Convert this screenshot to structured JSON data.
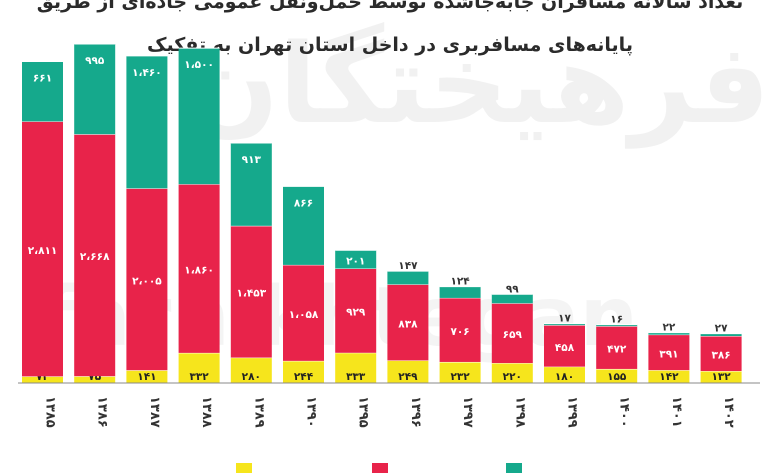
{
  "title_line1": "تعداد سالانه مسافران جابه‌جاشده توسط حمل‌ونقل عمومی جاده‌ای از طریق",
  "title_line2": "پایانه‌های مسافربری در داخل استان تهران به تفکیک",
  "colors": {
    "red": "#e8234a",
    "green": "#15a98c",
    "yellow": "#f6e51c"
  },
  "chart_data": {
    "type": "bar",
    "stacked": true,
    "categories": [
      "۱۳۸۵",
      "۱۳۸۶",
      "۱۳۸۷",
      "۱۳۸۸",
      "۱۳۸۹",
      "۱۳۹۰",
      "۱۳۹۵",
      "۱۳۹۶",
      "۱۳۹۷",
      "۱۳۹۸",
      "۱۳۹۹",
      "۱۴۰۰",
      "۱۴۰۱",
      "۱۴۰۲"
    ],
    "series": [
      {
        "color": "#f6e51c",
        "values": [
          73,
          75,
          141,
          332,
          280,
          244,
          333,
          249,
          232,
          220,
          180,
          155,
          142,
          132
        ],
        "labels": [
          "۷۳",
          "۷۵",
          "۱۴۱",
          "۳۳۲",
          "۲۸۰",
          "۲۴۴",
          "۳۳۳",
          "۲۴۹",
          "۲۳۲",
          "۲۲۰",
          "۱۸۰",
          "۱۵۵",
          "۱۴۲",
          "۱۳۲"
        ]
      },
      {
        "color": "#e8234a",
        "values": [
          2811,
          2668,
          2005,
          1860,
          1453,
          1058,
          929,
          838,
          706,
          659,
          458,
          472,
          391,
          386
        ],
        "labels": [
          "۲،۸۱۱",
          "۲،۶۶۸",
          "۲،۰۰۵",
          "۱،۸۶۰",
          "۱،۴۵۳",
          "۱،۰۵۸",
          "۹۲۹",
          "۸۳۸",
          "۷۰۶",
          "۶۵۹",
          "۴۵۸",
          "۴۷۲",
          "۳۹۱",
          "۳۸۶"
        ]
      },
      {
        "color": "#15a98c",
        "values": [
          661,
          995,
          1460,
          1500,
          913,
          866,
          201,
          147,
          124,
          99,
          17,
          16,
          22,
          27
        ],
        "labels": [
          "۶۶۱",
          "۹۹۵",
          "۱،۴۶۰",
          "۱،۵۰۰",
          "۹۱۳",
          "۸۶۶",
          "۲۰۱",
          "۱۴۷",
          "۱۲۴",
          "۹۹",
          "۱۷",
          "۱۶",
          "۲۲",
          "۲۷"
        ]
      }
    ]
  }
}
